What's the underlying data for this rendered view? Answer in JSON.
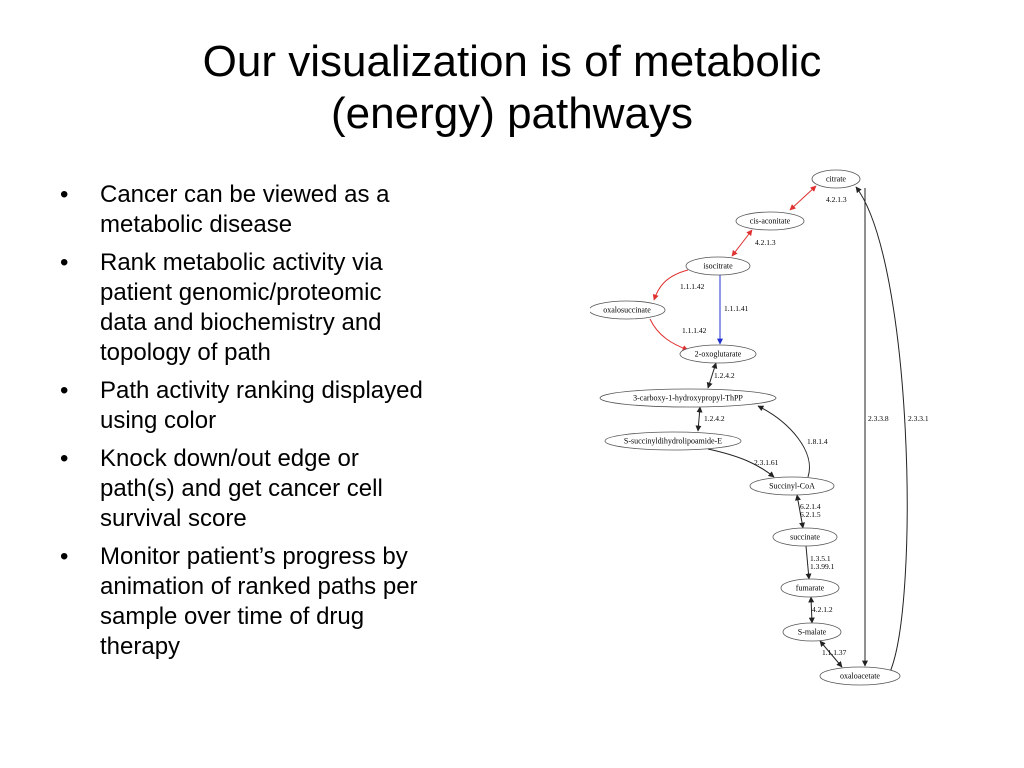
{
  "slide": {
    "title_line1": "Our visualization is of metabolic",
    "title_line2": "(energy) pathways",
    "bullets": [
      {
        "lines": [
          "Cancer can be viewed as a",
          "metabolic disease"
        ]
      },
      {
        "lines": [
          "Rank metabolic activity via",
          "patient genomic/proteomic",
          "data and biochemistry and",
          "topology of path"
        ]
      },
      {
        "lines": [
          "Path activity ranking displayed",
          "using color"
        ]
      },
      {
        "lines": [
          "Knock down/out edge or",
          "path(s) and get cancer cell",
          "survival score"
        ]
      },
      {
        "lines": [
          "Monitor patient’s progress by",
          "animation of ranked paths per",
          "sample over time of drug",
          "therapy"
        ]
      }
    ]
  },
  "diagram": {
    "colors": {
      "edge_default": "#222222",
      "edge_red": "#e03030",
      "edge_blue": "#2030d0",
      "node_stroke": "#555555"
    },
    "nodes": [
      {
        "id": "citrate",
        "label": "citrate"
      },
      {
        "id": "cis-aconitate",
        "label": "cis-aconitate"
      },
      {
        "id": "isocitrate",
        "label": "isocitrate"
      },
      {
        "id": "oxalosuccinate",
        "label": "oxalosuccinate"
      },
      {
        "id": "2-oxoglutarate",
        "label": "2-oxoglutarate"
      },
      {
        "id": "thpp",
        "label": "3-carboxy-1-hydroxypropyl-ThPP"
      },
      {
        "id": "s-succ",
        "label": "S-succinyldihydrolipoamide-E"
      },
      {
        "id": "succinyl-coa",
        "label": "Succinyl-CoA"
      },
      {
        "id": "succinate",
        "label": "succinate"
      },
      {
        "id": "fumarate",
        "label": "fumarate"
      },
      {
        "id": "s-malate",
        "label": "S-malate"
      },
      {
        "id": "oxaloacetate",
        "label": "oxaloacetate"
      }
    ],
    "edge_labels": [
      {
        "id": "e1",
        "lines": [
          "4.2.1.3"
        ]
      },
      {
        "id": "e2",
        "lines": [
          "4.2.1.3"
        ]
      },
      {
        "id": "e3",
        "lines": [
          "1.1.1.42"
        ]
      },
      {
        "id": "e4",
        "lines": [
          "1.1.1.41"
        ]
      },
      {
        "id": "e5",
        "lines": [
          "1.1.1.42"
        ]
      },
      {
        "id": "e6",
        "lines": [
          "1.2.4.2"
        ]
      },
      {
        "id": "e7",
        "lines": [
          "1.2.4.2"
        ]
      },
      {
        "id": "e8",
        "lines": [
          "1.8.1.4"
        ]
      },
      {
        "id": "e9",
        "lines": [
          "2.3.1.61"
        ]
      },
      {
        "id": "e10",
        "lines": [
          "6.2.1.4",
          "6.2.1.5"
        ]
      },
      {
        "id": "e11",
        "lines": [
          "1.3.5.1",
          "1.3.99.1"
        ]
      },
      {
        "id": "e12",
        "lines": [
          "4.2.1.2"
        ]
      },
      {
        "id": "e13",
        "lines": [
          "1.1.1.37"
        ]
      },
      {
        "id": "e14",
        "lines": [
          "2.3.3.8"
        ]
      },
      {
        "id": "e15",
        "lines": [
          "2.3.3.1"
        ]
      }
    ]
  }
}
